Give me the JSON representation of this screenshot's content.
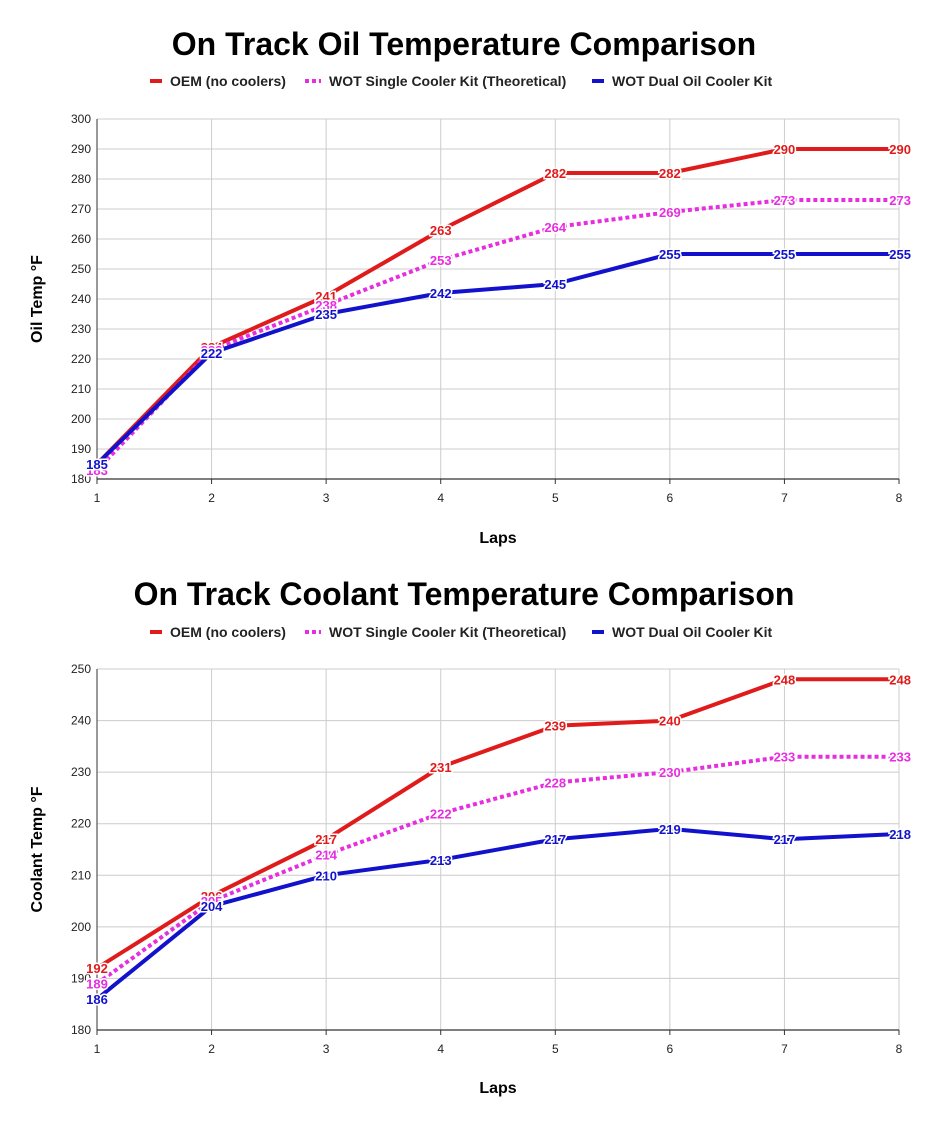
{
  "chart_data": [
    {
      "type": "line",
      "title": "On Track Oil Temperature Comparison",
      "xlabel": "Laps",
      "ylabel": "Oil Temp °F",
      "categories": [
        1,
        2,
        3,
        4,
        5,
        6,
        7,
        8
      ],
      "ylim": [
        180,
        300
      ],
      "ytick_step": 10,
      "grid": true,
      "legend_position": "top",
      "series": [
        {
          "name": "OEM (no coolers)",
          "color": "#e01b1b",
          "style": "solid",
          "values": [
            185,
            224,
            241,
            263,
            282,
            282,
            290,
            290
          ]
        },
        {
          "name": "WOT Single Cooler Kit (Theoretical)",
          "color": "#e62ee0",
          "style": "dotted",
          "values": [
            183,
            223,
            238,
            253,
            264,
            269,
            273,
            273
          ]
        },
        {
          "name": "WOT Dual Oil Cooler Kit",
          "color": "#1212cc",
          "style": "solid",
          "values": [
            185,
            222,
            235,
            242,
            245,
            255,
            255,
            255
          ]
        }
      ]
    },
    {
      "type": "line",
      "title": "On Track Coolant Temperature Comparison",
      "xlabel": "Laps",
      "ylabel": "Coolant Temp °F",
      "categories": [
        1,
        2,
        3,
        4,
        5,
        6,
        7,
        8
      ],
      "ylim": [
        180,
        250
      ],
      "ytick_step": 10,
      "grid": true,
      "legend_position": "top",
      "series": [
        {
          "name": "OEM (no coolers)",
          "color": "#e01b1b",
          "style": "solid",
          "values": [
            192,
            206,
            217,
            231,
            239,
            240,
            248,
            248
          ]
        },
        {
          "name": "WOT Single Cooler Kit (Theoretical)",
          "color": "#e62ee0",
          "style": "dotted",
          "values": [
            189,
            205,
            214,
            222,
            228,
            230,
            233,
            233
          ]
        },
        {
          "name": "WOT Dual Oil Cooler Kit",
          "color": "#1212cc",
          "style": "solid",
          "values": [
            186,
            204,
            210,
            213,
            217,
            219,
            217,
            218
          ]
        }
      ]
    }
  ]
}
